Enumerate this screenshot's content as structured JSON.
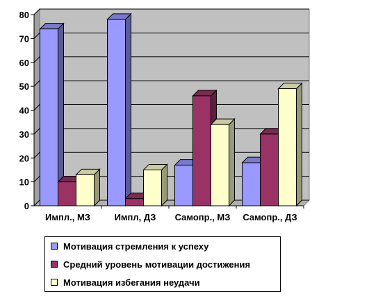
{
  "chart_data": {
    "type": "bar",
    "style": "3d-clustered-column",
    "categories": [
      "Импл., МЗ",
      "Импл, ДЗ",
      "Самопр., МЗ",
      "Самопр., ДЗ"
    ],
    "series": [
      {
        "name": "Мотивация стремления к успеху",
        "color": "#9999ff",
        "values": [
          74,
          78,
          17,
          18
        ]
      },
      {
        "name": "Средний уровень мотивации достижения",
        "color": "#993366",
        "values": [
          10,
          3,
          46,
          30
        ]
      },
      {
        "name": "Мотивация избегания неудачи",
        "color": "#ffffcc",
        "values": [
          13,
          15,
          34,
          49
        ]
      }
    ],
    "yticks": [
      "0",
      "10",
      "20",
      "30",
      "40",
      "50",
      "60",
      "70",
      "80"
    ],
    "ylim": [
      0,
      80
    ],
    "grid": true,
    "wall_color": "#c0c0c0",
    "legend_position": "bottom"
  }
}
